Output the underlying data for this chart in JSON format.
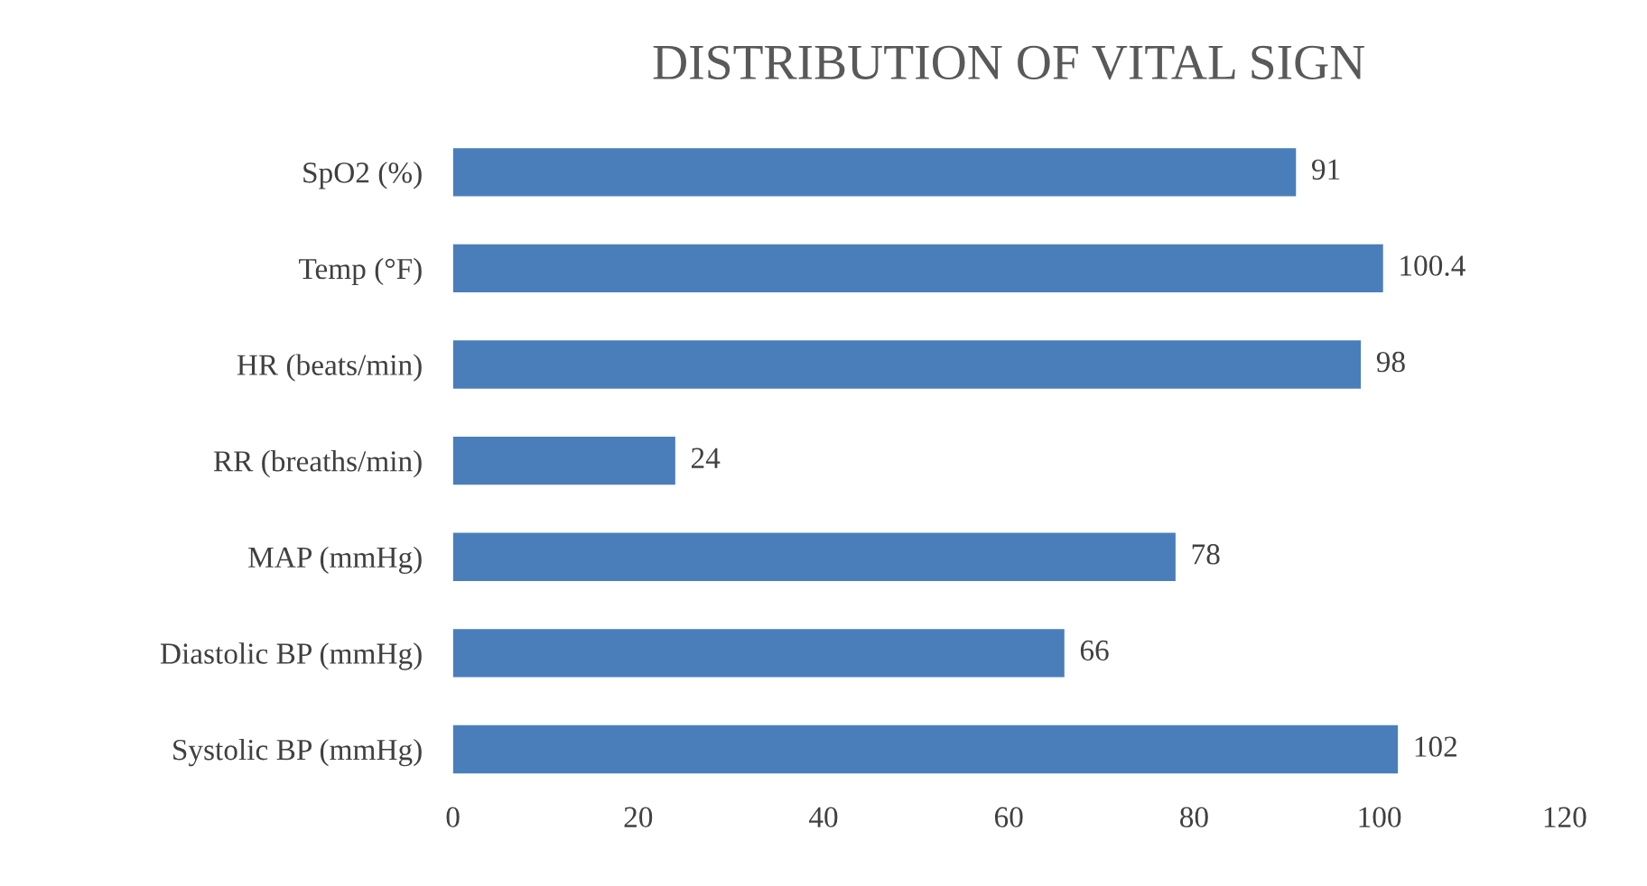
{
  "chart_data": {
    "type": "bar",
    "orientation": "horizontal",
    "title": "DISTRIBUTION OF VITAL SIGN",
    "categories": [
      "SpO2 (%)",
      "Temp (°F)",
      "HR (beats/min)",
      "RR (breaths/min)",
      "MAP (mmHg)",
      "Diastolic BP (mmHg)",
      "Systolic BP (mmHg)"
    ],
    "values": [
      91,
      100.4,
      98,
      24,
      78,
      66,
      102
    ],
    "color": "#4a7ebb",
    "xlim": [
      0,
      120
    ],
    "xticks": [
      0,
      20,
      40,
      60,
      80,
      100,
      120
    ],
    "data_labels": true
  }
}
